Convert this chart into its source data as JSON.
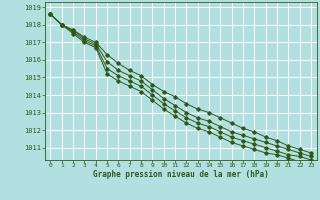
{
  "title": "Graphe pression niveau de la mer (hPa)",
  "background_color": "#b2dfdf",
  "grid_color": "#d4ecec",
  "line_color": "#2d5a1b",
  "xlim": [
    -0.5,
    23.5
  ],
  "ylim": [
    1010.3,
    1019.3
  ],
  "yticks": [
    1011,
    1012,
    1013,
    1014,
    1015,
    1016,
    1017,
    1018,
    1019
  ],
  "xticks": [
    0,
    1,
    2,
    3,
    4,
    5,
    6,
    7,
    8,
    9,
    10,
    11,
    12,
    13,
    14,
    15,
    16,
    17,
    18,
    19,
    20,
    21,
    22,
    23
  ],
  "series": [
    [
      1018.6,
      1018.0,
      1017.7,
      1017.3,
      1017.0,
      1016.3,
      1015.8,
      1015.4,
      1015.1,
      1014.6,
      1014.2,
      1013.9,
      1013.5,
      1013.2,
      1013.0,
      1012.7,
      1012.4,
      1012.1,
      1011.9,
      1011.6,
      1011.4,
      1011.1,
      1010.9,
      1010.7
    ],
    [
      1018.6,
      1018.0,
      1017.7,
      1017.2,
      1016.9,
      1015.9,
      1015.4,
      1015.1,
      1014.8,
      1014.3,
      1013.8,
      1013.4,
      1013.0,
      1012.7,
      1012.5,
      1012.2,
      1011.9,
      1011.7,
      1011.5,
      1011.3,
      1011.1,
      1010.9,
      1010.7,
      1010.5
    ],
    [
      1018.6,
      1018.0,
      1017.6,
      1017.1,
      1016.8,
      1015.5,
      1015.1,
      1014.8,
      1014.5,
      1014.0,
      1013.5,
      1013.1,
      1012.7,
      1012.4,
      1012.2,
      1011.9,
      1011.6,
      1011.4,
      1011.2,
      1011.0,
      1010.8,
      1010.6,
      1010.5,
      1010.3
    ],
    [
      1018.6,
      1018.0,
      1017.5,
      1017.0,
      1016.7,
      1015.2,
      1014.8,
      1014.5,
      1014.2,
      1013.7,
      1013.2,
      1012.8,
      1012.4,
      1012.1,
      1011.9,
      1011.6,
      1011.3,
      1011.1,
      1010.9,
      1010.7,
      1010.6,
      1010.4,
      1010.2,
      1010.1
    ]
  ]
}
